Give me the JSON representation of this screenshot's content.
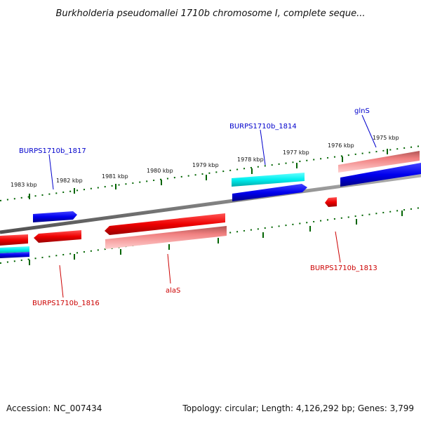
{
  "title": "Burkholderia pseudomallei 1710b chromosome I, complete seque...",
  "accession": "Accession: NC_007434",
  "summary": "Topology: circular; Length: 4,126,292 bp; Genes: 3,799",
  "scale_labels": [
    {
      "id": "kbp-1983",
      "text": "1983 kbp"
    },
    {
      "id": "kbp-1982",
      "text": "1982 kbp"
    },
    {
      "id": "kbp-1981",
      "text": "1981 kbp"
    },
    {
      "id": "kbp-1980",
      "text": "1980 kbp"
    },
    {
      "id": "kbp-1979",
      "text": "1979 kbp"
    },
    {
      "id": "kbp-1978",
      "text": "1978 kbp"
    },
    {
      "id": "kbp-1977",
      "text": "1977 kbp"
    },
    {
      "id": "kbp-1976",
      "text": "1976 kbp"
    },
    {
      "id": "kbp-1975",
      "text": "1975 kbp"
    }
  ],
  "gene_labels": [
    {
      "id": "gene-glns",
      "text": "glnS",
      "strand": "plus"
    },
    {
      "id": "gene-1814",
      "text": "BURPS1710b_1814",
      "strand": "plus"
    },
    {
      "id": "gene-1817",
      "text": "BURPS1710b_1817",
      "strand": "plus"
    },
    {
      "id": "gene-1813",
      "text": "BURPS1710b_1813",
      "strand": "minus"
    },
    {
      "id": "gene-alas",
      "text": "alaS",
      "strand": "minus"
    },
    {
      "id": "gene-1816",
      "text": "BURPS1710b_1816",
      "strand": "minus"
    }
  ],
  "colors": {
    "plus_gene": "#0000ee",
    "minus_gene": "#ee0000",
    "rna": "#00eeee",
    "pink": "#f08080",
    "backbone": "#808080",
    "ticks": "#006400",
    "plus_label": "#0000cc",
    "minus_label": "#cc0000"
  }
}
